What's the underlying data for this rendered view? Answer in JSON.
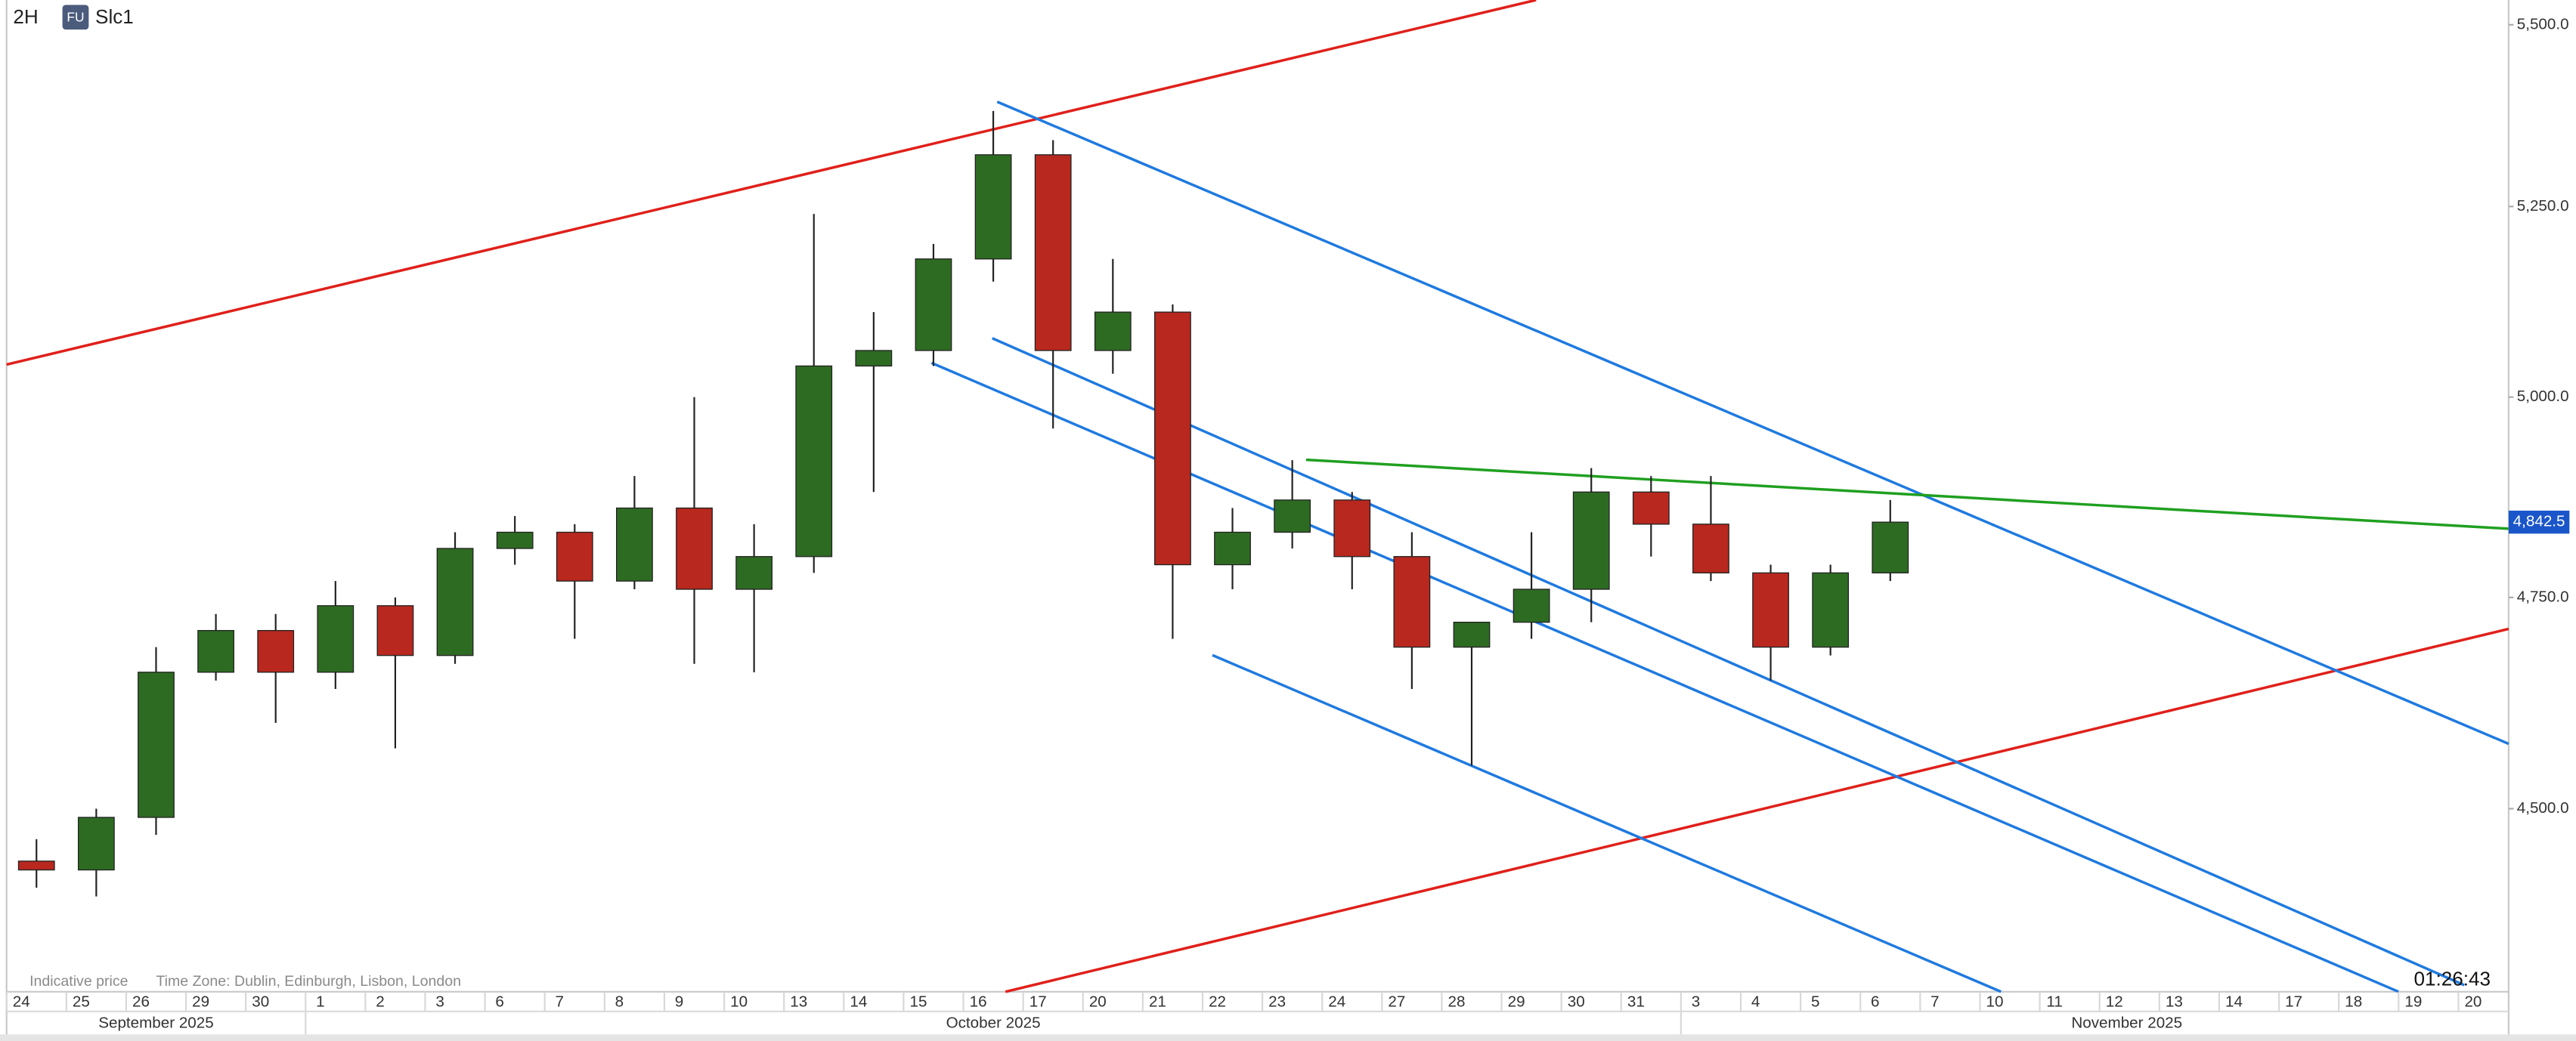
{
  "chart_data": {
    "type": "candlestick",
    "interval": "2H",
    "badge": "FU",
    "symbol": "Slc1",
    "indicative": "Indicative price",
    "time_zone": "Time Zone: Dublin, Edinburgh, Lisbon, London",
    "countdown": "01:26:43",
    "categories": [
      "24",
      "25",
      "26",
      "29",
      "30",
      "1",
      "2",
      "3",
      "6",
      "7",
      "8",
      "9",
      "10",
      "13",
      "14",
      "15",
      "16",
      "17",
      "20",
      "21",
      "22",
      "23",
      "24",
      "27",
      "28",
      "29",
      "30",
      "31",
      "3",
      "4",
      "5",
      "6",
      "7",
      "10",
      "11",
      "12",
      "13",
      "14",
      "17",
      "18",
      "19",
      "20"
    ],
    "months": [
      "September 2025",
      "October 2025",
      "November 2025"
    ],
    "open": [
      4440,
      4430,
      4490,
      4660,
      4710,
      4660,
      4740,
      4680,
      4810,
      4830,
      4770,
      4860,
      4760,
      4800,
      5040,
      5060,
      5180,
      5320,
      5060,
      5110,
      4790,
      4830,
      4870,
      4800,
      4690,
      4720,
      4760,
      4880,
      4840,
      4780,
      4690,
      4780,
      null,
      null,
      null,
      null,
      null,
      null,
      null,
      null,
      null,
      null
    ],
    "high": [
      4465,
      4500,
      4690,
      4730,
      4730,
      4770,
      4750,
      4830,
      4850,
      4840,
      4900,
      5000,
      4840,
      5240,
      5110,
      5200,
      5380,
      5340,
      5180,
      5120,
      4860,
      4920,
      4880,
      4830,
      4720,
      4830,
      4910,
      4900,
      4900,
      4790,
      4790,
      4870,
      null,
      null,
      null,
      null,
      null,
      null,
      null,
      null,
      null,
      null
    ],
    "low": [
      4410,
      4400,
      4470,
      4650,
      4600,
      4640,
      4570,
      4670,
      4790,
      4700,
      4760,
      4670,
      4660,
      4780,
      4880,
      5040,
      5150,
      4960,
      5030,
      4700,
      4760,
      4810,
      4760,
      4640,
      4550,
      4700,
      4720,
      4800,
      4770,
      4650,
      4680,
      4770,
      null,
      null,
      null,
      null,
      null,
      null,
      null,
      null,
      null,
      null
    ],
    "close": [
      4430,
      4490,
      4660,
      4710,
      4660,
      4740,
      4680,
      4810,
      4830,
      4770,
      4860,
      4760,
      4800,
      5040,
      5060,
      5180,
      5320,
      5060,
      5110,
      4790,
      4830,
      4870,
      4800,
      4690,
      4720,
      4760,
      4880,
      4840,
      4780,
      4690,
      4780,
      4842.5,
      null,
      null,
      null,
      null,
      null,
      null,
      null,
      null,
      null,
      null
    ],
    "up_color": "#2e6b22",
    "down_color": "#b8281e",
    "log_scale": true,
    "grid": false,
    "ylim": [
      4294,
      5535
    ],
    "yticks": [
      {
        "value": 4500,
        "label": "4,500.0"
      },
      {
        "value": 4750,
        "label": "4,750.0"
      },
      {
        "value": 5000,
        "label": "5,000.0"
      },
      {
        "value": 5250,
        "label": "5,250.0"
      },
      {
        "value": 5500,
        "label": "5,500.0"
      }
    ],
    "last_price": {
      "value": 4842.5,
      "label": "4,842.5"
    },
    "last_price_color": "#1a56c9"
  }
}
